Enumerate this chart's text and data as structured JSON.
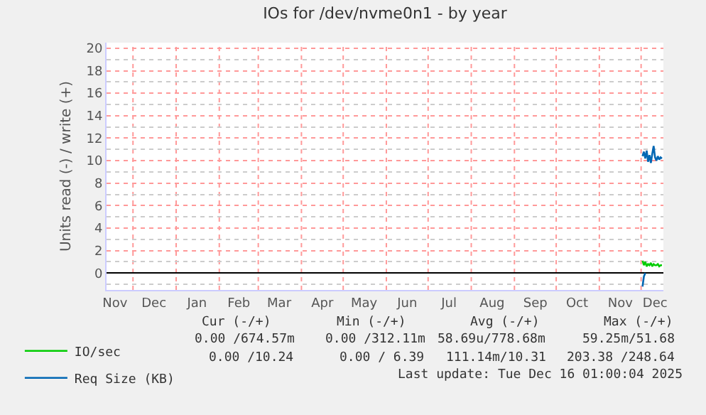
{
  "chart_data": {
    "type": "line",
    "title": "IOs for /dev/nvme0n1 - by year",
    "ylabel": "Units read (-) / write (+)",
    "x": [
      "2025-12-02",
      "2025-12-03",
      "2025-12-04",
      "2025-12-05",
      "2025-12-06",
      "2025-12-07",
      "2025-12-08",
      "2025-12-09",
      "2025-12-10",
      "2025-12-11",
      "2025-12-12",
      "2025-12-13",
      "2025-12-14",
      "2025-12-15",
      "2025-12-16"
    ],
    "series": [
      {
        "name": "IO/sec",
        "color": "#00cc00",
        "values": [
          1.1,
          0.7,
          1.0,
          0.6,
          0.8,
          0.7,
          0.9,
          0.6,
          0.8,
          0.7,
          0.7,
          0.8,
          0.6,
          0.7,
          0.7
        ]
      },
      {
        "name": "Req Size (KB)",
        "color": "#0066b3",
        "values": [
          10.4,
          10.8,
          10.2,
          10.9,
          9.9,
          10.5,
          9.8,
          10.6,
          11.3,
          10.3,
          10.0,
          10.4,
          10.1,
          10.3,
          10.2
        ]
      },
      {
        "color": "#0066b3",
        "x": [
          "2025-12-02",
          "2025-12-03",
          "2025-12-04"
        ],
        "values": [
          -1.2,
          -0.3,
          0
        ]
      }
    ],
    "xlim": [
      "2024-11-12",
      "2025-12-17"
    ],
    "xticks": [
      {
        "value": "2024-11-18",
        "label": "Nov"
      },
      {
        "value": "2024-12-01",
        "label": null
      },
      {
        "value": "2024-12-16",
        "label": "Dec"
      },
      {
        "value": "2025-01-01",
        "label": null
      },
      {
        "value": "2025-01-16",
        "label": "Jan"
      },
      {
        "value": "2025-02-01",
        "label": null
      },
      {
        "value": "2025-02-15",
        "label": "Feb"
      },
      {
        "value": "2025-03-01",
        "label": null
      },
      {
        "value": "2025-03-16",
        "label": "Mar"
      },
      {
        "value": "2025-04-01",
        "label": null
      },
      {
        "value": "2025-04-16",
        "label": "Apr"
      },
      {
        "value": "2025-05-01",
        "label": null
      },
      {
        "value": "2025-05-16",
        "label": "May"
      },
      {
        "value": "2025-06-01",
        "label": null
      },
      {
        "value": "2025-06-16",
        "label": "Jun"
      },
      {
        "value": "2025-07-01",
        "label": null
      },
      {
        "value": "2025-07-16",
        "label": "Jul"
      },
      {
        "value": "2025-08-01",
        "label": null
      },
      {
        "value": "2025-08-16",
        "label": "Aug"
      },
      {
        "value": "2025-09-01",
        "label": null
      },
      {
        "value": "2025-09-16",
        "label": "Sep"
      },
      {
        "value": "2025-10-01",
        "label": null
      },
      {
        "value": "2025-10-16",
        "label": "Oct"
      },
      {
        "value": "2025-11-01",
        "label": null
      },
      {
        "value": "2025-11-16",
        "label": "Nov"
      },
      {
        "value": "2025-12-01",
        "label": null
      },
      {
        "value": "2025-12-11",
        "label": "Dec"
      }
    ],
    "ylim": [
      -1.5,
      20.5
    ],
    "yticks": [
      0,
      2,
      4,
      6,
      8,
      10,
      12,
      14,
      16,
      18,
      20
    ],
    "grid": true,
    "legend": "bottom left",
    "marker": "none",
    "line_style": "solid",
    "annotations": [
      "Cur (-/+)",
      "Min (-/+)",
      "Avg (-/+)",
      "Max (-/+)",
      "0.00 /674.57m",
      "0.00 /312.11m",
      "58.69u/778.68m",
      "59.25m/51.68",
      "0.00 /10.24",
      "0.00 / 6.39",
      "111.14m/10.31",
      "203.38 /248.64",
      "Last update: Tue Dec 16 01:00:04 2025"
    ]
  }
}
